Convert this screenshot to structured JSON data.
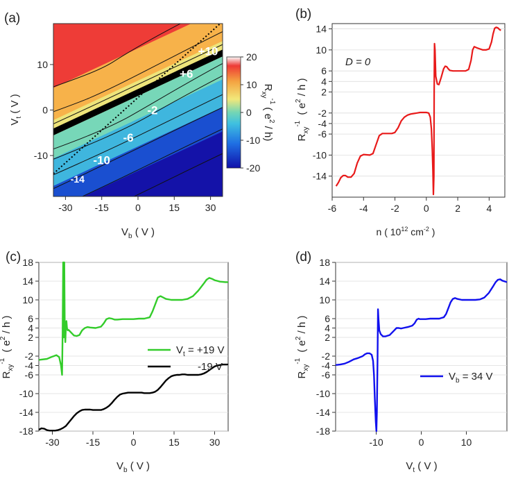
{
  "colors": {
    "map_low": "#1512b0",
    "map_mid": "#45c7c0",
    "map_high": "#ee2b2b",
    "red": "#e81a1a",
    "green": "#33cc2a",
    "black": "#000000",
    "blue": "#1111ee"
  },
  "chart_data": [
    {
      "panel": "(a)",
      "type": "heatmap",
      "xlabel": "V",
      "xlabel_sub": "b",
      "xlabel_unit": " ( V )",
      "ylabel": "V",
      "ylabel_sub": "t",
      "ylabel_unit": " ( V )",
      "xlim": [
        -35,
        35
      ],
      "ylim": [
        -19,
        19
      ],
      "xticks": [
        -30,
        -15,
        0,
        15,
        30
      ],
      "yticks": [
        -10,
        0,
        10
      ],
      "colorbar": {
        "label": "R",
        "label_sub": "xy",
        "label_sup": "-1",
        "label_unit": "( e",
        "label_unit_sup": "2",
        "label_unit_end": " / h)",
        "range": [
          -20,
          20
        ],
        "ticks": [
          -20,
          -10,
          0,
          10,
          20
        ]
      },
      "annotations": [
        {
          "text": "+10",
          "x": 29,
          "y": 13
        },
        {
          "text": "+6",
          "x": 20,
          "y": 8
        },
        {
          "text": "-2",
          "x": 6,
          "y": 0
        },
        {
          "text": "-6",
          "x": -4,
          "y": -6
        },
        {
          "text": "-10",
          "x": -15,
          "y": -11
        },
        {
          "text": "-14",
          "x": -25,
          "y": -15
        }
      ],
      "dotted_line": {
        "from": [
          -35,
          -14
        ],
        "to": [
          34,
          19
        ]
      }
    },
    {
      "panel": "(b)",
      "type": "line",
      "annotation": "D = 0",
      "xlabel": "n ( 10",
      "xlabel_sup": "12",
      "xlabel_mid": " cm",
      "xlabel_sup2": "-2",
      "xlabel_end": " )",
      "ylabel": "R",
      "ylabel_sub": "xy",
      "ylabel_sup": "-1",
      "ylabel_unit": " ( e",
      "ylabel_unit_sup": "2",
      "ylabel_unit_end": " / h )",
      "xlim": [
        -6,
        5
      ],
      "ylim": [
        -18,
        15
      ],
      "xticks": [
        -6,
        -4,
        -2,
        0,
        2,
        4
      ],
      "yticks": [
        -14,
        -10,
        -6,
        -4,
        -2,
        2,
        4,
        6,
        10,
        14
      ],
      "series": [
        {
          "color": "#e81a1a",
          "x": [
            -5.75,
            -5.6,
            -5.45,
            -5.3,
            -5.15,
            -5.0,
            -4.8,
            -4.6,
            -4.4,
            -4.2,
            -4.0,
            -3.6,
            -3.4,
            -3.2,
            -3.0,
            -2.8,
            -2.6,
            -2.4,
            -2.2,
            -2.0,
            -1.8,
            -1.6,
            -1.4,
            -1.2,
            -1.0,
            -0.8,
            -0.6,
            -0.4,
            -0.2,
            0.0,
            0.15,
            0.25,
            0.32,
            0.38,
            0.42,
            0.45,
            0.48,
            0.5,
            0.52,
            0.55,
            0.6,
            0.7,
            0.8,
            0.95,
            1.1,
            1.2,
            1.3,
            1.4,
            1.5,
            1.7,
            1.9,
            2.1,
            2.3,
            2.5,
            2.7,
            2.85,
            2.95,
            3.05,
            3.2,
            3.4,
            3.6,
            3.8,
            4.0,
            4.15,
            4.25,
            4.35,
            4.45,
            4.55,
            4.65,
            4.75
          ],
          "y": [
            -15.9,
            -15.2,
            -14.3,
            -13.9,
            -13.9,
            -14.2,
            -14.2,
            -13.5,
            -11.5,
            -10.2,
            -9.9,
            -10.0,
            -9.7,
            -8.0,
            -6.3,
            -5.9,
            -5.9,
            -5.9,
            -5.9,
            -5.7,
            -4.8,
            -3.5,
            -2.8,
            -2.4,
            -2.2,
            -2.1,
            -2.0,
            -1.9,
            -1.9,
            -1.9,
            -2.0,
            -2.8,
            -5.0,
            -9.0,
            -13.0,
            -17.5,
            -14.0,
            2.0,
            11.2,
            10.0,
            5.0,
            3.5,
            3.4,
            4.8,
            6.4,
            6.9,
            6.8,
            6.4,
            6.1,
            6.0,
            6.0,
            6.0,
            6.0,
            6.0,
            6.3,
            8.0,
            10.0,
            10.6,
            10.4,
            10.2,
            10.0,
            10.0,
            10.2,
            11.5,
            13.0,
            14.1,
            14.3,
            14.2,
            13.9,
            13.7
          ]
        }
      ]
    },
    {
      "panel": "(c)",
      "type": "line",
      "xlabel": "V",
      "xlabel_sub": "b",
      "xlabel_unit": " ( V )",
      "ylabel": "R",
      "ylabel_sub": "xy",
      "ylabel_sup": "-1",
      "ylabel_unit": " ( e",
      "ylabel_unit_sup": "2",
      "ylabel_unit_end": " / h )",
      "xlim": [
        -35,
        35
      ],
      "ylim": [
        -18,
        18
      ],
      "xticks": [
        -30,
        -15,
        0,
        15,
        30
      ],
      "yticks": [
        -18,
        -14,
        -10,
        -6,
        -4,
        -2,
        2,
        4,
        6,
        10,
        14,
        18
      ],
      "legend_position": "right",
      "series": [
        {
          "name": "V",
          "name_sub": "t",
          "name_rest": " = +19 V",
          "color": "#33cc2a",
          "x": [
            -35,
            -32,
            -30,
            -28.5,
            -27.5,
            -26.8,
            -26.4,
            -26.2,
            -26.0,
            -25.8,
            -25.6,
            -25.4,
            -25.2,
            -25.0,
            -24.8,
            -24.6,
            -24.3,
            -24.0,
            -23.0,
            -22.0,
            -21.0,
            -20.0,
            -19.0,
            -18.0,
            -17.0,
            -16.0,
            -14.0,
            -12.0,
            -11.0,
            -10.0,
            -9.0,
            -8.0,
            -7.0,
            -6.0,
            -4.0,
            -2.0,
            0.0,
            2.0,
            4.0,
            6.0,
            7.0,
            8.0,
            9.0,
            10.0,
            12.0,
            14.0,
            16.0,
            18.0,
            20.0,
            22.0,
            24.0,
            26.0,
            27.0,
            28.0,
            29.0,
            30.0,
            32.0,
            34.0,
            35.0
          ],
          "y": [
            -2.8,
            -2.6,
            -2.1,
            -1.8,
            -2.2,
            -4.0,
            -6.0,
            3.0,
            18.0,
            2.0,
            18.0,
            4.0,
            1.0,
            4.0,
            5.5,
            4.0,
            3.5,
            3.6,
            3.0,
            2.4,
            2.3,
            2.5,
            3.5,
            4.0,
            4.2,
            4.1,
            4.0,
            4.3,
            5.0,
            5.9,
            6.1,
            6.0,
            5.8,
            5.8,
            5.9,
            5.9,
            5.9,
            6.0,
            6.0,
            6.3,
            7.5,
            9.0,
            10.5,
            10.8,
            10.2,
            10.0,
            10.0,
            10.0,
            10.2,
            10.8,
            12.0,
            13.5,
            14.3,
            14.7,
            14.5,
            14.2,
            13.9,
            13.8,
            13.8
          ]
        },
        {
          "name": "-19 V",
          "color": "#000000",
          "x": [
            -35,
            -34,
            -33,
            -32,
            -31,
            -30,
            -29,
            -28,
            -27,
            -26,
            -25,
            -24,
            -23,
            -22,
            -21,
            -20,
            -19,
            -18,
            -17,
            -16,
            -15,
            -14,
            -13,
            -12,
            -11,
            -10,
            -9,
            -8,
            -7,
            -6,
            -5,
            -4,
            -3,
            -2,
            -1,
            0,
            1,
            2,
            3,
            4,
            5,
            6,
            7,
            8,
            9,
            10,
            11,
            12,
            13,
            14,
            15,
            16,
            17,
            18,
            19,
            20,
            21,
            22,
            23,
            24,
            25,
            26,
            27,
            28,
            29,
            30,
            31,
            32,
            33,
            34,
            35
          ],
          "y": [
            -17.7,
            -17.4,
            -17.5,
            -17.8,
            -17.9,
            -17.9,
            -17.9,
            -17.8,
            -17.6,
            -17.3,
            -16.9,
            -16.2,
            -15.5,
            -14.8,
            -14.2,
            -13.8,
            -13.5,
            -13.4,
            -13.4,
            -13.4,
            -13.5,
            -13.5,
            -13.5,
            -13.5,
            -13.3,
            -13.0,
            -12.6,
            -12.0,
            -11.3,
            -10.7,
            -10.2,
            -10.0,
            -9.9,
            -9.8,
            -9.8,
            -9.8,
            -9.8,
            -9.8,
            -9.8,
            -9.9,
            -9.9,
            -9.9,
            -9.8,
            -9.6,
            -9.2,
            -8.6,
            -7.9,
            -7.2,
            -6.7,
            -6.3,
            -6.1,
            -6.0,
            -6.0,
            -5.9,
            -5.9,
            -6.0,
            -6.0,
            -6.0,
            -6.0,
            -6.0,
            -5.9,
            -5.7,
            -5.4,
            -5.0,
            -4.6,
            -4.2,
            -4.0,
            -3.9,
            -3.8,
            -3.8,
            -3.8
          ]
        }
      ]
    },
    {
      "panel": "(d)",
      "type": "line",
      "xlabel": "V",
      "xlabel_sub": "t",
      "xlabel_unit": " ( V )",
      "ylabel": "R",
      "ylabel_sub": "xy",
      "ylabel_sup": "-1",
      "ylabel_unit": " ( e",
      "ylabel_unit_sup": "2",
      "ylabel_unit_end": " / h )",
      "xlim": [
        -19,
        19
      ],
      "ylim": [
        -18,
        18
      ],
      "xticks": [
        -10,
        0,
        10
      ],
      "yticks": [
        -18,
        -14,
        -10,
        -6,
        -4,
        -2,
        2,
        4,
        6,
        10,
        14,
        18
      ],
      "legend_position": "right",
      "series": [
        {
          "name": "V",
          "name_sub": "b",
          "name_rest": " = 34 V",
          "color": "#1111ee",
          "x": [
            -19,
            -18,
            -17,
            -16,
            -15,
            -14,
            -13,
            -12.5,
            -12,
            -11.5,
            -11,
            -10.7,
            -10.5,
            -10.3,
            -10.1,
            -9.95,
            -9.85,
            -9.7,
            -9.6,
            -9.5,
            -9.3,
            -9.0,
            -8.5,
            -8.0,
            -7.0,
            -6.0,
            -5.5,
            -5.0,
            -4.5,
            -4.0,
            -3.0,
            -2.0,
            -1.5,
            -1.0,
            -0.6,
            -0.3,
            0.0,
            1.0,
            2.0,
            3.0,
            4.0,
            5.0,
            5.5,
            6.0,
            6.5,
            7.0,
            7.5,
            8.0,
            9.0,
            10.0,
            11.0,
            12.0,
            13.0,
            14.0,
            15.0,
            16.0,
            16.5,
            17.0,
            17.5,
            18.0,
            19.0
          ],
          "y": [
            -3.9,
            -3.8,
            -3.6,
            -3.2,
            -2.7,
            -2.4,
            -2.0,
            -1.6,
            -1.4,
            -1.4,
            -1.7,
            -3.0,
            -6.0,
            -11.0,
            -16.0,
            -18.0,
            -14.0,
            -2.0,
            8.0,
            6.0,
            3.5,
            2.7,
            2.2,
            2.2,
            2.5,
            3.5,
            4.0,
            4.0,
            3.9,
            4.0,
            4.2,
            4.5,
            5.0,
            5.8,
            6.0,
            5.9,
            5.9,
            5.9,
            6.0,
            6.0,
            6.0,
            6.3,
            7.0,
            8.2,
            9.5,
            10.2,
            10.4,
            10.2,
            10.0,
            10.0,
            10.0,
            10.0,
            10.1,
            10.5,
            11.5,
            13.0,
            13.8,
            14.3,
            14.4,
            14.1,
            13.8
          ]
        }
      ]
    }
  ]
}
